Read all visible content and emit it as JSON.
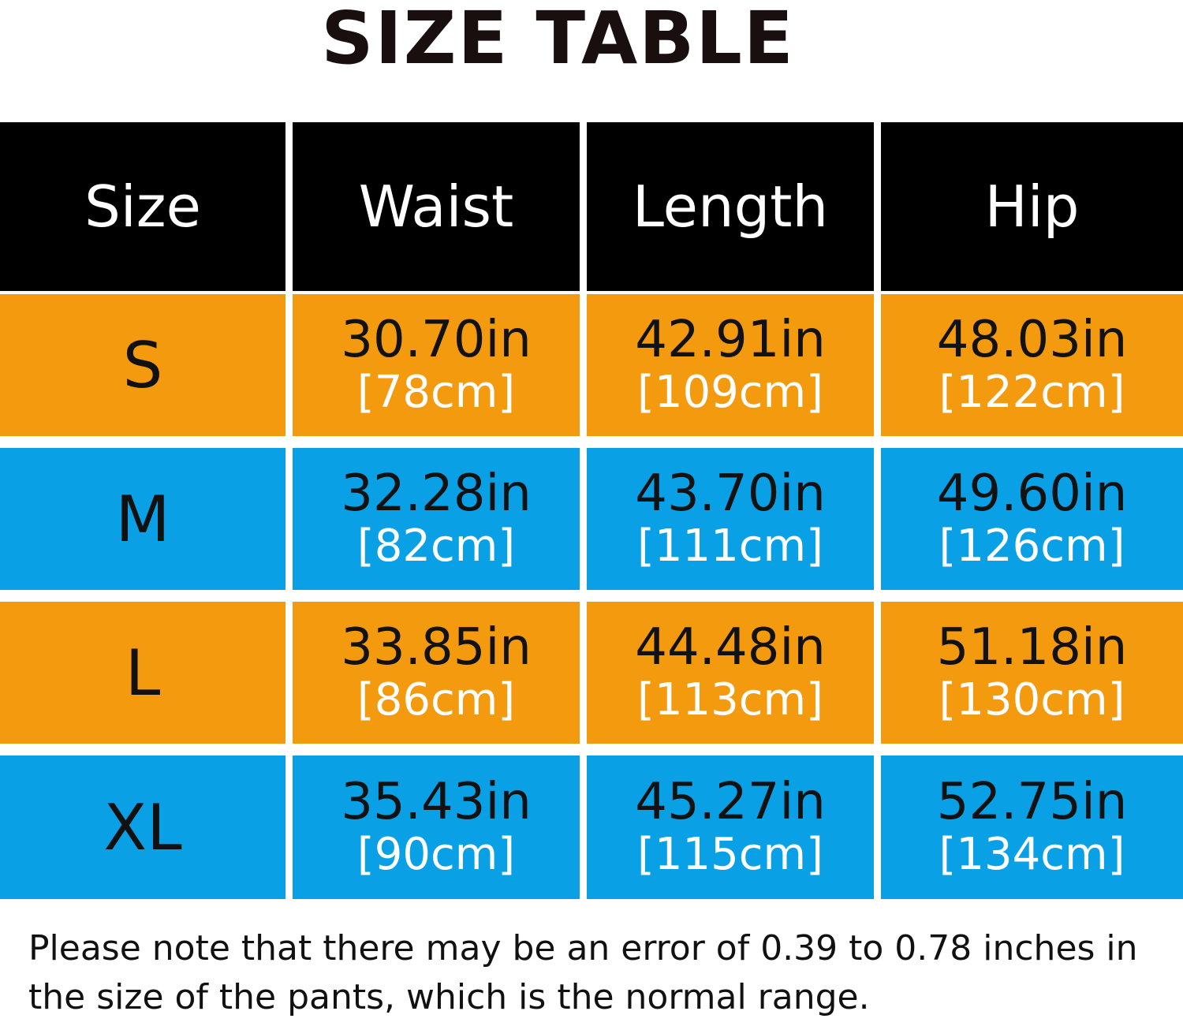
{
  "title": "SIZE TABLE",
  "headers": [
    "Size",
    "Waist",
    "Length",
    "Hip"
  ],
  "rows": [
    {
      "size": "S",
      "waist_in": "30.70in",
      "waist_cm": "[78cm]",
      "length_in": "42.91in",
      "length_cm": "[109cm]",
      "hip_in": "48.03in",
      "hip_cm": "[122cm]"
    },
    {
      "size": "M",
      "waist_in": "32.28in",
      "waist_cm": "[82cm]",
      "length_in": "43.70in",
      "length_cm": "[111cm]",
      "hip_in": "49.60in",
      "hip_cm": "[126cm]"
    },
    {
      "size": "L",
      "waist_in": "33.85in",
      "waist_cm": "[86cm]",
      "length_in": "44.48in",
      "length_cm": "[113cm]",
      "hip_in": "51.18in",
      "hip_cm": "[130cm]"
    },
    {
      "size": "XL",
      "waist_in": "35.43in",
      "waist_cm": "[90cm]",
      "length_in": "45.27in",
      "length_cm": "[115cm]",
      "hip_in": "52.75in",
      "hip_cm": "[134cm]"
    }
  ],
  "note": "Please note that there may be an error of 0.39 to 0.78 inches in the size of the pants, which is the normal range.",
  "colors": {
    "header": "#000000",
    "orange_row": "#f39a0e",
    "blue_row": "#0aa0e6"
  }
}
